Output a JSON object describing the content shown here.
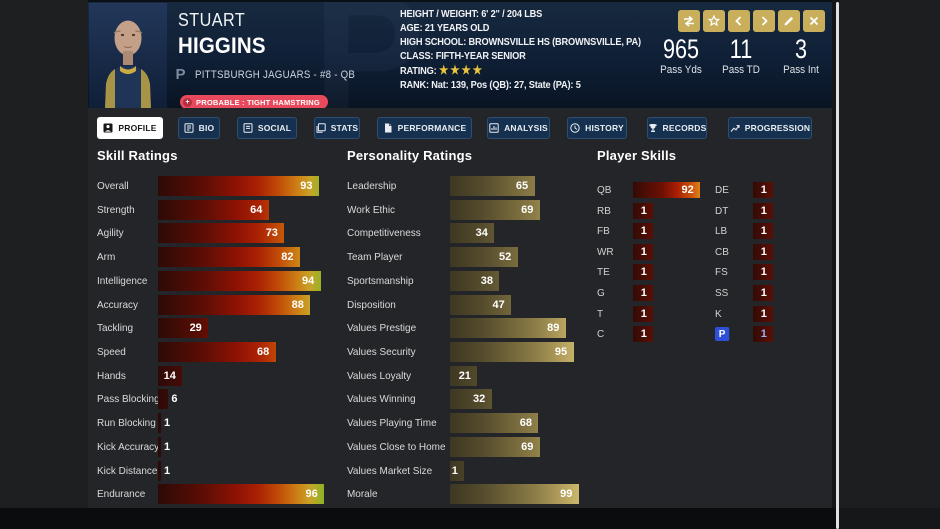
{
  "header": {
    "watermark_letter": "P",
    "player": {
      "first_name": "STUART",
      "last_name": "HIGGINS",
      "team_logo_letter": "P",
      "team_line": "PITTSBURGH JAGUARS - #8 - QB",
      "status_badge": "PROBABLE : TIGHT HAMSTRING"
    },
    "info_lines": [
      {
        "label": "HEIGHT / WEIGHT:",
        "value": "6' 2\" / 204 LBS"
      },
      {
        "label": "AGE:",
        "value": "21 YEARS OLD"
      },
      {
        "label": "HIGH SCHOOL:",
        "value": "BROWNSVILLE HS (BROWNSVILLE, PA)"
      },
      {
        "label": "CLASS:",
        "value": "FIFTH-YEAR SENIOR"
      },
      {
        "label": "RATING:",
        "stars": 4
      },
      {
        "label": "RANK:",
        "value": "Nat: 139, Pos (QB): 27, State (PA): 5"
      }
    ],
    "stats": [
      {
        "value": "965",
        "label": "Pass Yds"
      },
      {
        "value": "11",
        "label": "Pass TD"
      },
      {
        "value": "3",
        "label": "Pass Int"
      }
    ],
    "action_buttons": [
      {
        "name": "swap-player-button",
        "icon": "swap-icon"
      },
      {
        "name": "favorite-button",
        "icon": "star-icon"
      },
      {
        "name": "previous-player-button",
        "icon": "chevron-left-icon"
      },
      {
        "name": "next-player-button",
        "icon": "chevron-right-icon"
      },
      {
        "name": "edit-player-button",
        "icon": "pencil-icon"
      },
      {
        "name": "close-button",
        "icon": "x-icon"
      }
    ]
  },
  "tabs": [
    {
      "label": "PROFILE",
      "icon": "profile-icon",
      "active": true
    },
    {
      "label": "BIO",
      "icon": "bio-icon",
      "active": false
    },
    {
      "label": "SOCIAL",
      "icon": "social-icon",
      "active": false
    },
    {
      "label": "STATS",
      "icon": "stats-icon",
      "active": false
    },
    {
      "label": "PERFORMANCE",
      "icon": "performance-icon",
      "active": false
    },
    {
      "label": "ANALYSIS",
      "icon": "analysis-icon",
      "active": false
    },
    {
      "label": "HISTORY",
      "icon": "history-icon",
      "active": false
    },
    {
      "label": "RECORDS",
      "icon": "records-icon",
      "active": false
    },
    {
      "label": "PROGRESSION",
      "icon": "progression-icon",
      "active": false
    }
  ],
  "chart_data": [
    {
      "type": "bar",
      "title": "Skill Ratings",
      "categories": [
        "Overall",
        "Strength",
        "Agility",
        "Arm",
        "Intelligence",
        "Accuracy",
        "Tackling",
        "Speed",
        "Hands",
        "Pass Blocking",
        "Run Blocking",
        "Kick Accuracy",
        "Kick Distance",
        "Endurance"
      ],
      "values": [
        93,
        64,
        73,
        82,
        94,
        88,
        29,
        68,
        14,
        6,
        1,
        1,
        1,
        96
      ],
      "xlim": [
        0,
        100
      ]
    },
    {
      "type": "bar",
      "title": "Personality Ratings",
      "categories": [
        "Leadership",
        "Work Ethic",
        "Competitiveness",
        "Team Player",
        "Sportsmanship",
        "Disposition",
        "Values Prestige",
        "Values Security",
        "Values Loyalty",
        "Values Winning",
        "Values Playing Time",
        "Values Close to Home",
        "Values Market Size",
        "Morale"
      ],
      "values": [
        65,
        69,
        34,
        52,
        38,
        47,
        89,
        95,
        21,
        32,
        68,
        69,
        1,
        99
      ],
      "xlim": [
        0,
        100
      ]
    },
    {
      "type": "bar",
      "title": "Player Skills",
      "series": [
        {
          "name": "left-column",
          "categories": [
            "QB",
            "RB",
            "FB",
            "WR",
            "TE",
            "G",
            "T",
            "C"
          ],
          "values": [
            92,
            1,
            1,
            1,
            1,
            1,
            1,
            1
          ]
        },
        {
          "name": "right-column",
          "categories": [
            "DE",
            "DT",
            "LB",
            "CB",
            "FS",
            "SS",
            "K",
            "P"
          ],
          "values": [
            1,
            1,
            1,
            1,
            1,
            1,
            1,
            1
          ],
          "highlighted_category": "P"
        }
      ],
      "xlim": [
        0,
        100
      ]
    }
  ]
}
